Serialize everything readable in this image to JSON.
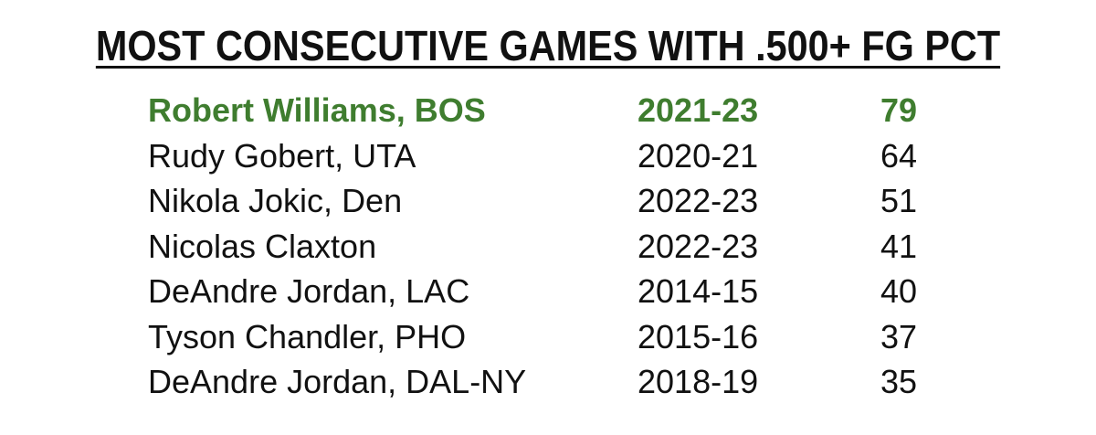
{
  "title": "MOST CONSECUTIVE GAMES WITH .500+ FG PCT",
  "highlight_color": "#3f7d2f",
  "rows": [
    {
      "player": "Robert Williams, BOS",
      "seasons": "2021-23",
      "games": "79",
      "highlight": true
    },
    {
      "player": "Rudy Gobert, UTA",
      "seasons": "2020-21",
      "games": "64",
      "highlight": false
    },
    {
      "player": "Nikola Jokic, Den",
      "seasons": "2022-23",
      "games": "51",
      "highlight": false
    },
    {
      "player": "Nicolas Claxton",
      "seasons": "2022-23",
      "games": "41",
      "highlight": false
    },
    {
      "player": "DeAndre Jordan, LAC",
      "seasons": "2014-15",
      "games": "40",
      "highlight": false
    },
    {
      "player": "Tyson Chandler, PHO",
      "seasons": "2015-16",
      "games": "37",
      "highlight": false
    },
    {
      "player": "DeAndre Jordan, DAL-NY",
      "seasons": "2018-19",
      "games": "35",
      "highlight": false
    }
  ]
}
